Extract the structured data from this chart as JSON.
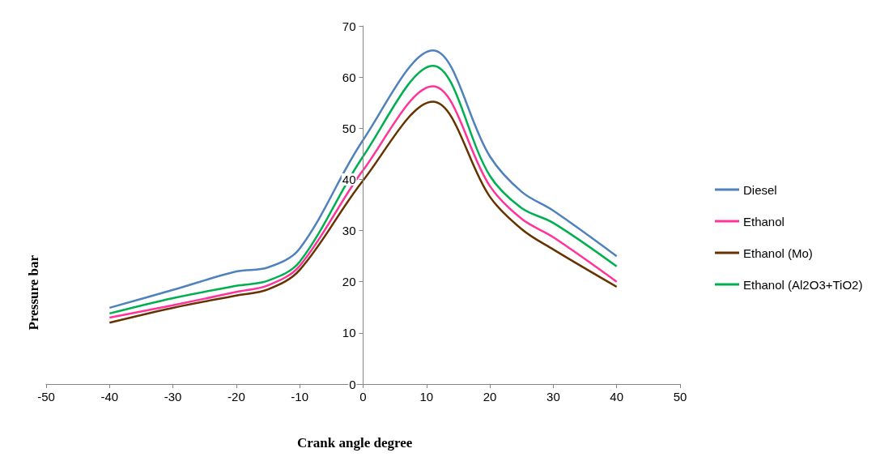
{
  "chart_data": {
    "type": "line",
    "xlabel": "Crank angle degree",
    "ylabel": "Pressure bar",
    "x": [
      -40,
      -30,
      -20,
      -15,
      -10,
      0,
      11,
      20,
      25,
      30,
      40
    ],
    "series": [
      {
        "name": "Diesel",
        "color": "#4f81bd",
        "values": [
          14.9,
          18.4,
          22,
          22.8,
          26.5,
          47.7,
          65.2,
          44.5,
          37.6,
          33.9,
          25
        ]
      },
      {
        "name": "Ethanol",
        "color": "#ff3399",
        "values": [
          13,
          15.4,
          18,
          19.3,
          23.1,
          41.8,
          58.2,
          38.7,
          32.3,
          28.7,
          20
        ]
      },
      {
        "name": "Ethanol (Mo)",
        "color": "#663300",
        "values": [
          12,
          14.9,
          17.3,
          18.5,
          22.3,
          39.8,
          55.2,
          36.6,
          30.3,
          26.3,
          19
        ]
      },
      {
        "name": "Ethanol (Al2O3+TiO2)",
        "color": "#00b050",
        "values": [
          13.8,
          16.8,
          19.2,
          20.2,
          23.9,
          44.5,
          62.2,
          40.7,
          34.4,
          31.5,
          23
        ]
      }
    ],
    "xlim": [
      -50,
      50
    ],
    "xticks": [
      -50,
      -40,
      -30,
      -20,
      -10,
      0,
      10,
      20,
      30,
      40,
      50
    ],
    "ylim": [
      0,
      70
    ],
    "yticks": [
      0,
      10,
      20,
      30,
      40,
      50,
      60,
      70
    ],
    "grid": false,
    "legend": "right",
    "marker": "none",
    "line_style": "solid"
  }
}
